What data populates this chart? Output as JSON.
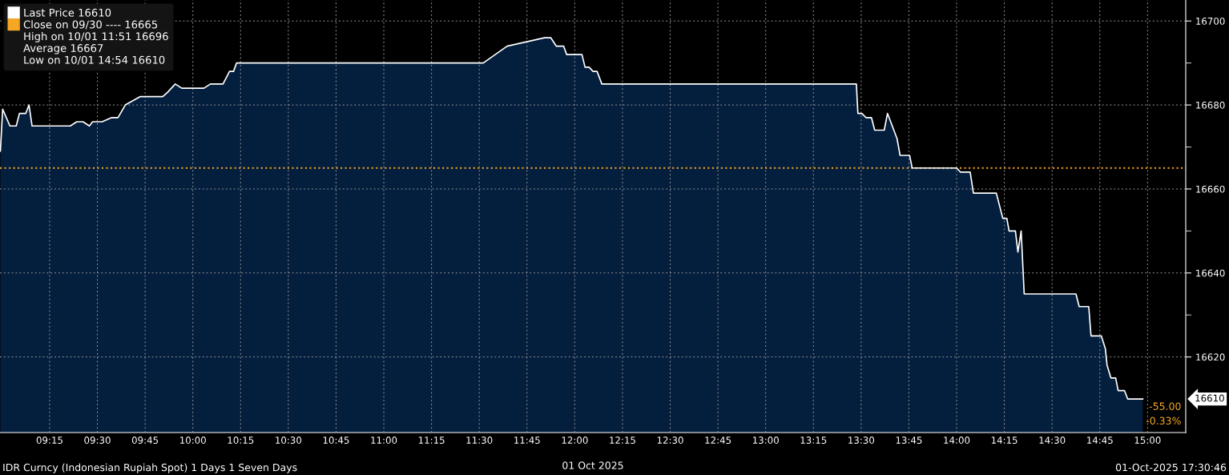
{
  "chart_data": {
    "type": "area",
    "x": [
      8.992,
      9.004,
      9.042,
      9.075,
      9.092,
      9.125,
      9.142,
      9.158,
      9.358,
      9.392,
      9.425,
      9.458,
      9.475,
      9.525,
      9.575,
      9.608,
      9.646,
      9.725,
      9.842,
      9.867,
      9.908,
      9.942,
      9.958,
      10.058,
      10.092,
      10.158,
      10.192,
      10.213,
      10.229,
      11.521,
      11.646,
      11.842,
      11.875,
      11.904,
      11.942,
      11.958,
      11.992,
      12.038,
      12.054,
      12.075,
      12.096,
      12.117,
      12.142,
      13.475,
      13.483,
      13.504,
      13.525,
      13.554,
      13.571,
      13.621,
      13.638,
      13.688,
      13.704,
      13.754,
      13.767,
      14.0,
      14.021,
      14.071,
      14.088,
      14.208,
      14.242,
      14.263,
      14.275,
      14.308,
      14.321,
      14.338,
      14.354,
      14.625,
      14.642,
      14.692,
      14.704,
      14.758,
      14.779,
      14.788,
      14.808,
      14.833,
      14.846,
      14.879,
      14.896,
      14.975
    ],
    "series": [
      {
        "name": "Last Price 16610",
        "color": "#041e3d",
        "values": [
          16669,
          16679,
          16675,
          16675,
          16678,
          16678,
          16680,
          16675,
          16675,
          16676,
          16676,
          16675,
          16676,
          16676,
          16677,
          16677,
          16680,
          16682,
          16682,
          16683,
          16685,
          16684,
          16684,
          16684,
          16685,
          16685,
          16688,
          16688,
          16690,
          16690,
          16694,
          16696,
          16696,
          16694,
          16694,
          16692,
          16692,
          16692,
          16689,
          16689,
          16688,
          16688,
          16685,
          16685,
          16678,
          16678,
          16677,
          16677,
          16674,
          16674,
          16678,
          16672,
          16668,
          16668,
          16665,
          16665,
          16664,
          16664,
          16659,
          16659,
          16653,
          16653,
          16650,
          16650,
          16645,
          16650,
          16635,
          16635,
          16632,
          16632,
          16625,
          16625,
          16622,
          16618,
          16615,
          16615,
          16612,
          16612,
          16610,
          16610
        ]
      }
    ],
    "xlim": [
      8.99,
      15.2
    ],
    "xticks": [
      {
        "value": 9.25,
        "label": "09:15"
      },
      {
        "value": 9.5,
        "label": "09:30"
      },
      {
        "value": 9.75,
        "label": "09:45"
      },
      {
        "value": 10.0,
        "label": "10:00"
      },
      {
        "value": 10.25,
        "label": "10:15"
      },
      {
        "value": 10.5,
        "label": "10:30"
      },
      {
        "value": 10.75,
        "label": "10:45"
      },
      {
        "value": 11.0,
        "label": "11:00"
      },
      {
        "value": 11.25,
        "label": "11:15"
      },
      {
        "value": 11.5,
        "label": "11:30"
      },
      {
        "value": 11.75,
        "label": "11:45"
      },
      {
        "value": 12.0,
        "label": "12:00"
      },
      {
        "value": 12.25,
        "label": "12:15"
      },
      {
        "value": 12.5,
        "label": "12:30"
      },
      {
        "value": 12.75,
        "label": "12:45"
      },
      {
        "value": 13.0,
        "label": "13:00"
      },
      {
        "value": 13.25,
        "label": "13:15"
      },
      {
        "value": 13.5,
        "label": "13:30"
      },
      {
        "value": 13.75,
        "label": "13:45"
      },
      {
        "value": 14.0,
        "label": "14:00"
      },
      {
        "value": 14.25,
        "label": "14:15"
      },
      {
        "value": 14.5,
        "label": "14:30"
      },
      {
        "value": 14.75,
        "label": "14:45"
      },
      {
        "value": 15.0,
        "label": "15:00"
      }
    ],
    "ylim": [
      16602,
      16705
    ],
    "yticks": [
      16620,
      {
        "value": 16630,
        "label": null
      },
      16640,
      {
        "value": 16650,
        "label": null
      },
      16660,
      {
        "value": 16670,
        "label": null
      },
      16680,
      {
        "value": 16690,
        "label": null
      },
      16700
    ],
    "ref_lines": [
      {
        "axis": "y",
        "value": 16665,
        "label": "Close on 09/30 ---- 16665",
        "color": "#f5a623",
        "line_style": "dotted"
      }
    ],
    "grid": true,
    "legend": "top left",
    "annotations": [
      "High on 10/01 11:51 16696",
      "Average 16667",
      "Low on 10/01 14:54 16610",
      "01 Oct 2025",
      "IDR Curncy (Indonesian Rupiah Spot) 1 Days 1 Seven Days",
      "01-Oct-2025 17:30:46",
      "16610",
      "-55.00",
      "-0.33%"
    ]
  }
}
